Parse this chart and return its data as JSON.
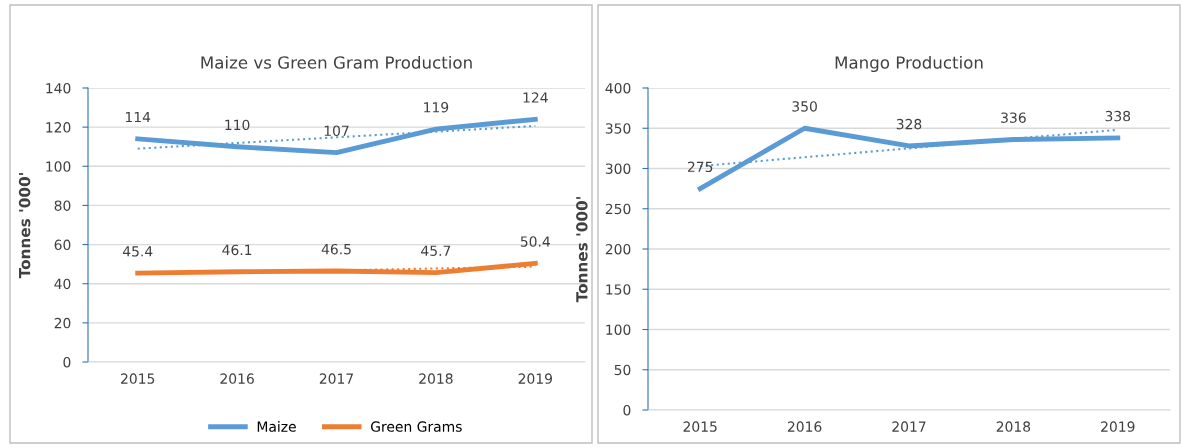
{
  "chart_data": [
    {
      "type": "line",
      "title": "Maize vs Green Gram Production",
      "ylabel": "Tonnes '000'",
      "categories": [
        "2015",
        "2016",
        "2017",
        "2018",
        "2019"
      ],
      "ylim": [
        0,
        140
      ],
      "yticks": [
        0,
        20,
        40,
        60,
        80,
        100,
        120,
        140
      ],
      "grid": "y",
      "legend": "bottom",
      "series": [
        {
          "name": "Maize",
          "color": "#5b9bd5",
          "values": [
            114,
            110,
            107,
            119,
            124
          ],
          "value_labels": [
            "114",
            "110",
            "107",
            "119",
            "124"
          ]
        },
        {
          "name": "Green Grams",
          "color": "#ed7d31",
          "values": [
            45.4,
            46.1,
            46.5,
            45.7,
            50.4
          ],
          "value_labels": [
            "45.4",
            "46.1",
            "46.5",
            "45.7",
            "50.4"
          ]
        },
        {
          "color": "#5b9bd5",
          "line_style": "dotted",
          "values": [
            109.0,
            111.9,
            114.8,
            117.7,
            120.6
          ]
        },
        {
          "color": "#ed7d31",
          "line_style": "dotted",
          "values": [
            44.9,
            45.9,
            46.8,
            47.8,
            48.7
          ]
        }
      ]
    },
    {
      "type": "line",
      "title": "Mango Production",
      "ylabel": "Tonnes '000'",
      "categories": [
        "2015",
        "2016",
        "2017",
        "2018",
        "2019"
      ],
      "ylim": [
        0,
        400
      ],
      "yticks": [
        0,
        50,
        100,
        150,
        200,
        250,
        300,
        350,
        400
      ],
      "grid": "y",
      "series": [
        {
          "color": "#5b9bd5",
          "values": [
            275,
            350,
            328,
            336,
            338
          ],
          "value_labels": [
            "275",
            "350",
            "328",
            "336",
            "338"
          ]
        },
        {
          "color": "#5b9bd5",
          "line_style": "dotted",
          "values": [
            303,
            314,
            325,
            337,
            348
          ]
        }
      ]
    }
  ]
}
